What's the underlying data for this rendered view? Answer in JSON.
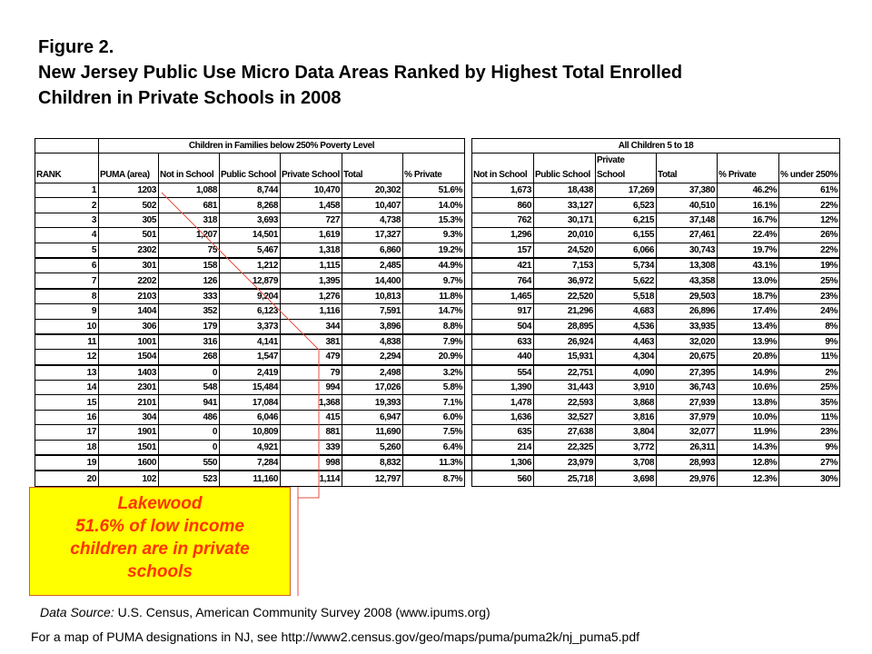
{
  "title": {
    "line1": "Figure 2.",
    "line2": "New Jersey Public Use Micro Data Areas Ranked by Highest Total Enrolled",
    "line3": "Children in Private Schools in 2008"
  },
  "table": {
    "group_left": "Children in Families below 250% Poverty Level",
    "group_right": "All Children 5 to 18",
    "headers_left": [
      "RANK",
      "PUMA (area)",
      "Not in School",
      "Public School",
      "Private School",
      "Total",
      "% Private"
    ],
    "headers_right": [
      "Not in School",
      "Public School",
      "Private School",
      "Total",
      "% Private",
      "% under 250%"
    ],
    "rows": [
      [
        "1",
        "1203",
        "1,088",
        "8,744",
        "10,470",
        "20,302",
        "51.6%",
        "1,673",
        "18,438",
        "17,269",
        "37,380",
        "46.2%",
        "61%"
      ],
      [
        "2",
        "502",
        "681",
        "8,268",
        "1,458",
        "10,407",
        "14.0%",
        "860",
        "33,127",
        "6,523",
        "40,510",
        "16.1%",
        "22%"
      ],
      [
        "3",
        "305",
        "318",
        "3,693",
        "727",
        "4,738",
        "15.3%",
        "762",
        "30,171",
        "6,215",
        "37,148",
        "16.7%",
        "12%"
      ],
      [
        "4",
        "501",
        "1,207",
        "14,501",
        "1,619",
        "17,327",
        "9.3%",
        "1,296",
        "20,010",
        "6,155",
        "27,461",
        "22.4%",
        "26%"
      ],
      [
        "5",
        "2302",
        "75",
        "5,467",
        "1,318",
        "6,860",
        "19.2%",
        "157",
        "24,520",
        "6,066",
        "30,743",
        "19.7%",
        "22%"
      ],
      [
        "6",
        "301",
        "158",
        "1,212",
        "1,115",
        "2,485",
        "44.9%",
        "421",
        "7,153",
        "5,734",
        "13,308",
        "43.1%",
        "19%"
      ],
      [
        "7",
        "2202",
        "126",
        "12,879",
        "1,395",
        "14,400",
        "9.7%",
        "764",
        "36,972",
        "5,622",
        "43,358",
        "13.0%",
        "25%"
      ],
      [
        "8",
        "2103",
        "333",
        "9,204",
        "1,276",
        "10,813",
        "11.8%",
        "1,465",
        "22,520",
        "5,518",
        "29,503",
        "18.7%",
        "23%"
      ],
      [
        "9",
        "1404",
        "352",
        "6,123",
        "1,116",
        "7,591",
        "14.7%",
        "917",
        "21,296",
        "4,683",
        "26,896",
        "17.4%",
        "24%"
      ],
      [
        "10",
        "306",
        "179",
        "3,373",
        "344",
        "3,896",
        "8.8%",
        "504",
        "28,895",
        "4,536",
        "33,935",
        "13.4%",
        "8%"
      ],
      [
        "11",
        "1001",
        "316",
        "4,141",
        "381",
        "4,838",
        "7.9%",
        "633",
        "26,924",
        "4,463",
        "32,020",
        "13.9%",
        "9%"
      ],
      [
        "12",
        "1504",
        "268",
        "1,547",
        "479",
        "2,294",
        "20.9%",
        "440",
        "15,931",
        "4,304",
        "20,675",
        "20.8%",
        "11%"
      ],
      [
        "13",
        "1403",
        "0",
        "2,419",
        "79",
        "2,498",
        "3.2%",
        "554",
        "22,751",
        "4,090",
        "27,395",
        "14.9%",
        "2%"
      ],
      [
        "14",
        "2301",
        "548",
        "15,484",
        "994",
        "17,026",
        "5.8%",
        "1,390",
        "31,443",
        "3,910",
        "36,743",
        "10.6%",
        "25%"
      ],
      [
        "15",
        "2101",
        "941",
        "17,084",
        "1,368",
        "19,393",
        "7.1%",
        "1,478",
        "22,593",
        "3,868",
        "27,939",
        "13.8%",
        "35%"
      ],
      [
        "16",
        "304",
        "486",
        "6,046",
        "415",
        "6,947",
        "6.0%",
        "1,636",
        "32,527",
        "3,816",
        "37,979",
        "10.0%",
        "11%"
      ],
      [
        "17",
        "1901",
        "0",
        "10,809",
        "881",
        "11,690",
        "7.5%",
        "635",
        "27,638",
        "3,804",
        "32,077",
        "11.9%",
        "23%"
      ],
      [
        "18",
        "1501",
        "0",
        "4,921",
        "339",
        "5,260",
        "6.4%",
        "214",
        "22,325",
        "3,772",
        "26,311",
        "14.3%",
        "9%"
      ],
      [
        "19",
        "1600",
        "550",
        "7,284",
        "998",
        "8,832",
        "11.3%",
        "1,306",
        "23,979",
        "3,708",
        "28,993",
        "12.8%",
        "27%"
      ],
      [
        "20",
        "102",
        "523",
        "11,160",
        "1,114",
        "12,797",
        "8.7%",
        "560",
        "25,718",
        "3,698",
        "29,976",
        "12.3%",
        "30%"
      ]
    ]
  },
  "callout": {
    "line1": "Lakewood",
    "line2": "51.6% of low income",
    "line3": "children are in private",
    "line4": "schools"
  },
  "source": {
    "label": "Data Source:",
    "text": " U.S. Census, American Community Survey 2008 (www.ipums.org)"
  },
  "map_note": "For a map of PUMA designations in NJ, see http://www2.census.gov/geo/maps/puma/puma2k/nj_puma5.pdf",
  "colors": {
    "callout_bg": "#ffff00",
    "callout_text": "#ff3300",
    "pointer_line": "#e05040"
  }
}
